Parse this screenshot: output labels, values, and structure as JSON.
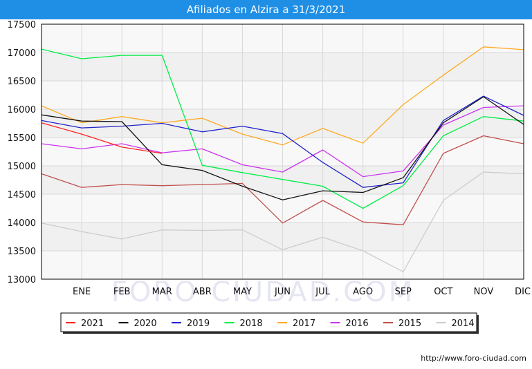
{
  "title": "Afiliados en Alzira a 31/3/2021",
  "footer": "http://www.foro-ciudad.com",
  "watermark": "FORO-CIUDAD.COM",
  "chart_data": {
    "type": "line",
    "title": "Afiliados en Alzira a 31/3/2021",
    "x": [
      "",
      "ENE",
      "FEB",
      "MAR",
      "ABR",
      "MAY",
      "JUN",
      "JUL",
      "AGO",
      "SEP",
      "OCT",
      "NOV",
      "DIC"
    ],
    "tick_labels": [
      "ENE",
      "FEB",
      "MAR",
      "ABR",
      "MAY",
      "JUN",
      "JUL",
      "AGO",
      "SEP",
      "OCT",
      "NOV",
      "DIC"
    ],
    "ylim": [
      13000,
      17500
    ],
    "yticks": [
      13000,
      13500,
      14000,
      14500,
      15000,
      15500,
      16000,
      16500,
      17000,
      17500
    ],
    "grid": true,
    "legend": "bottom",
    "series": [
      {
        "name": "2014",
        "color": "#cccccc",
        "values": [
          13990,
          13840,
          13710,
          13870,
          13860,
          13870,
          13520,
          13740,
          13500,
          13130,
          14390,
          14890,
          14860
        ]
      },
      {
        "name": "2015",
        "color": "#c0504d",
        "values": [
          14860,
          14620,
          14670,
          14650,
          14670,
          14690,
          13990,
          14390,
          14010,
          13960,
          15220,
          15530,
          15390
        ]
      },
      {
        "name": "2016",
        "color": "#cc33ee",
        "values": [
          15390,
          15300,
          15390,
          15230,
          15300,
          15020,
          14890,
          15280,
          14810,
          14910,
          15720,
          16030,
          16060
        ]
      },
      {
        "name": "2017",
        "color": "#ffaa22",
        "values": [
          16060,
          15760,
          15870,
          15760,
          15840,
          15560,
          15370,
          15660,
          15400,
          16080,
          16600,
          17100,
          17050
        ]
      },
      {
        "name": "2018",
        "color": "#00ee44",
        "values": [
          17060,
          16890,
          16950,
          16950,
          15010,
          14880,
          14760,
          14640,
          14250,
          14650,
          15530,
          15870,
          15790
        ]
      },
      {
        "name": "2019",
        "color": "#2222cc",
        "values": [
          15800,
          15670,
          15700,
          15750,
          15600,
          15700,
          15570,
          15060,
          14620,
          14700,
          15800,
          16230,
          15890
        ]
      },
      {
        "name": "2020",
        "color": "#111111",
        "values": [
          15900,
          15790,
          15780,
          15020,
          14920,
          14640,
          14400,
          14560,
          14530,
          14790,
          15760,
          16220,
          15730
        ]
      },
      {
        "name": "2021",
        "color": "#ff2222",
        "values": [
          15760,
          15560,
          15330,
          15220,
          null,
          null,
          null,
          null,
          null,
          null,
          null,
          null,
          null
        ]
      }
    ],
    "legend_order": [
      "2021",
      "2020",
      "2019",
      "2018",
      "2017",
      "2016",
      "2015",
      "2014"
    ]
  }
}
